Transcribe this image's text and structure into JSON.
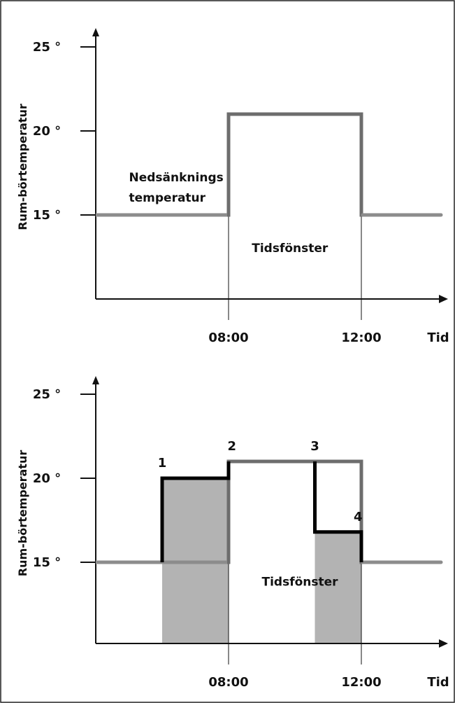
{
  "colors": {
    "background": "#ffffff",
    "border": "#222222",
    "axis": "#111111",
    "setpoint_line": "#6d6d6d",
    "baseline_line": "#8c8c8c",
    "actual_line": "#000000",
    "shade": "#b3b3b3"
  },
  "chart_data": [
    {
      "type": "line",
      "ylabel": "Rum-börtemperatur",
      "xlabel": "Tid",
      "y_ticks": [
        "25 °",
        "20 °",
        "15 °"
      ],
      "x_ticks": [
        "08:00",
        "12:00"
      ],
      "series": [
        {
          "points": [
            [
              6.0,
              15
            ],
            [
              8.0,
              15
            ],
            [
              8.0,
              21
            ],
            [
              12.0,
              21
            ],
            [
              12.0,
              15
            ],
            [
              14.4,
              15
            ]
          ]
        }
      ],
      "annotations": [
        {
          "text": "Nedsänknings",
          "x": 6.5,
          "y": 17.0
        },
        {
          "text": "temperatur",
          "x": 6.5,
          "y": 15.8
        },
        {
          "text": "Tidsfönster",
          "x": 8.7,
          "y": 12.8
        }
      ],
      "x_range": [
        6.0,
        14.6
      ],
      "y_range": [
        11,
        26.5
      ]
    },
    {
      "type": "line",
      "ylabel": "Rum-börtemperatur",
      "xlabel": "Tid",
      "y_ticks": [
        "25 °",
        "20 °",
        "15 °"
      ],
      "x_ticks": [
        "08:00",
        "12:00"
      ],
      "series": [
        {
          "points": [
            [
              6.0,
              15
            ],
            [
              8.0,
              15
            ],
            [
              8.0,
              21
            ],
            [
              12.0,
              21
            ],
            [
              12.0,
              15
            ],
            [
              14.4,
              15
            ]
          ]
        },
        {
          "points": [
            [
              7.0,
              15
            ],
            [
              7.0,
              20
            ],
            [
              8.0,
              20
            ],
            [
              8.0,
              21
            ]
          ]
        },
        {
          "points": [
            [
              10.6,
              21
            ],
            [
              10.6,
              16.8
            ],
            [
              12.0,
              16.8
            ],
            [
              12.0,
              15
            ]
          ]
        }
      ],
      "shaded_regions": [
        {
          "x_from": 7.0,
          "x_to": 8.0,
          "y_top": 20
        },
        {
          "x_from": 10.6,
          "x_to": 12.0,
          "y_top": 16.8
        }
      ],
      "markers": [
        {
          "label": "1",
          "x": 7.0,
          "y": 20
        },
        {
          "label": "2",
          "x": 8.1,
          "y": 21
        },
        {
          "label": "3",
          "x": 10.6,
          "y": 21
        },
        {
          "label": "4",
          "x": 11.9,
          "y": 16.8
        }
      ],
      "annotations": [
        {
          "text": "Tidsfönster",
          "x": 9.0,
          "y": 13.6
        }
      ],
      "x_range": [
        6.0,
        14.6
      ],
      "y_range": [
        11,
        26.5
      ]
    }
  ]
}
